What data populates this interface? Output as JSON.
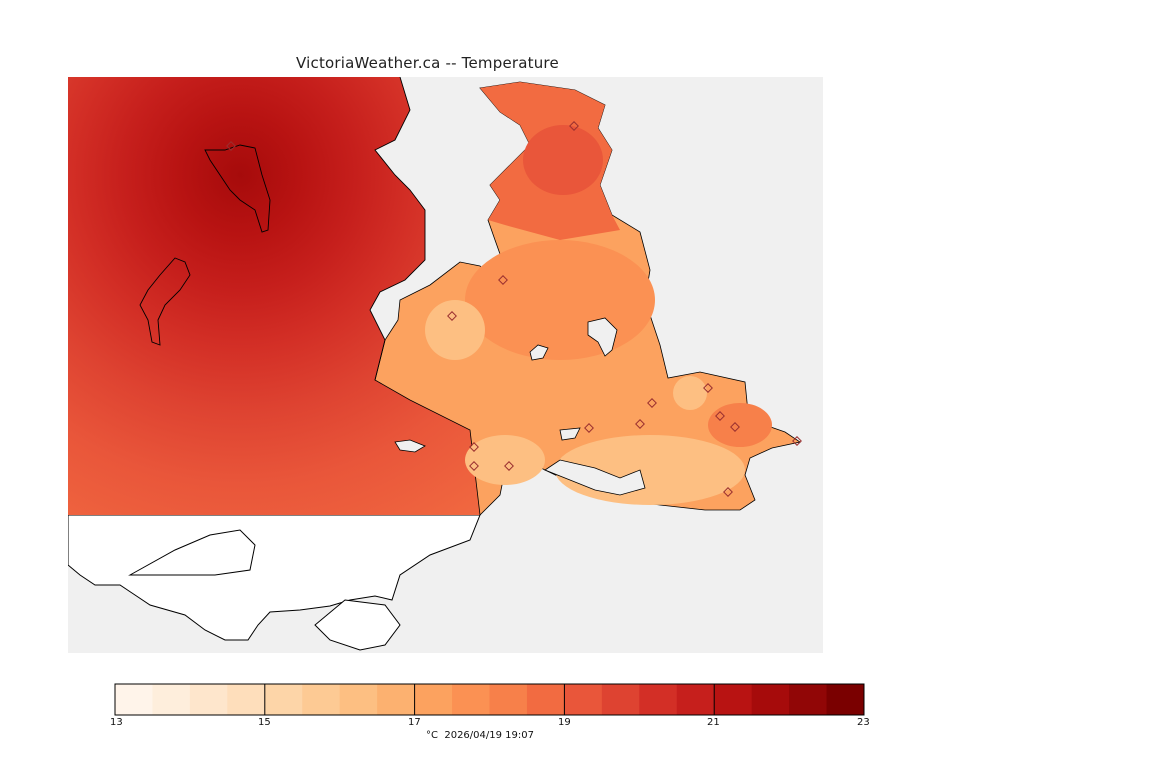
{
  "title": "VictoriaWeather.ca -- Temperature",
  "legend": {
    "min": 13,
    "max": 23,
    "tick_labels": [
      "13",
      "15",
      "17",
      "19",
      "21",
      "23"
    ],
    "colors": [
      "#fff4ea",
      "#feeedc",
      "#fee6cc",
      "#fedebb",
      "#fdd5a8",
      "#fdca94",
      "#fdbf82",
      "#fcb170",
      "#fca25f",
      "#fb9153",
      "#f7804a",
      "#f26b41",
      "#e9563a",
      "#de4331",
      "#d32f26",
      "#c61f1c",
      "#b81312",
      "#a60b0b",
      "#910606",
      "#7a0000"
    ],
    "unit": "°C",
    "timestamp": "2026/04/19 19:07"
  },
  "colors": {
    "no_data": "#f0f0f0",
    "coast": "#000000",
    "station_marker": "#9a2f2f"
  }
}
